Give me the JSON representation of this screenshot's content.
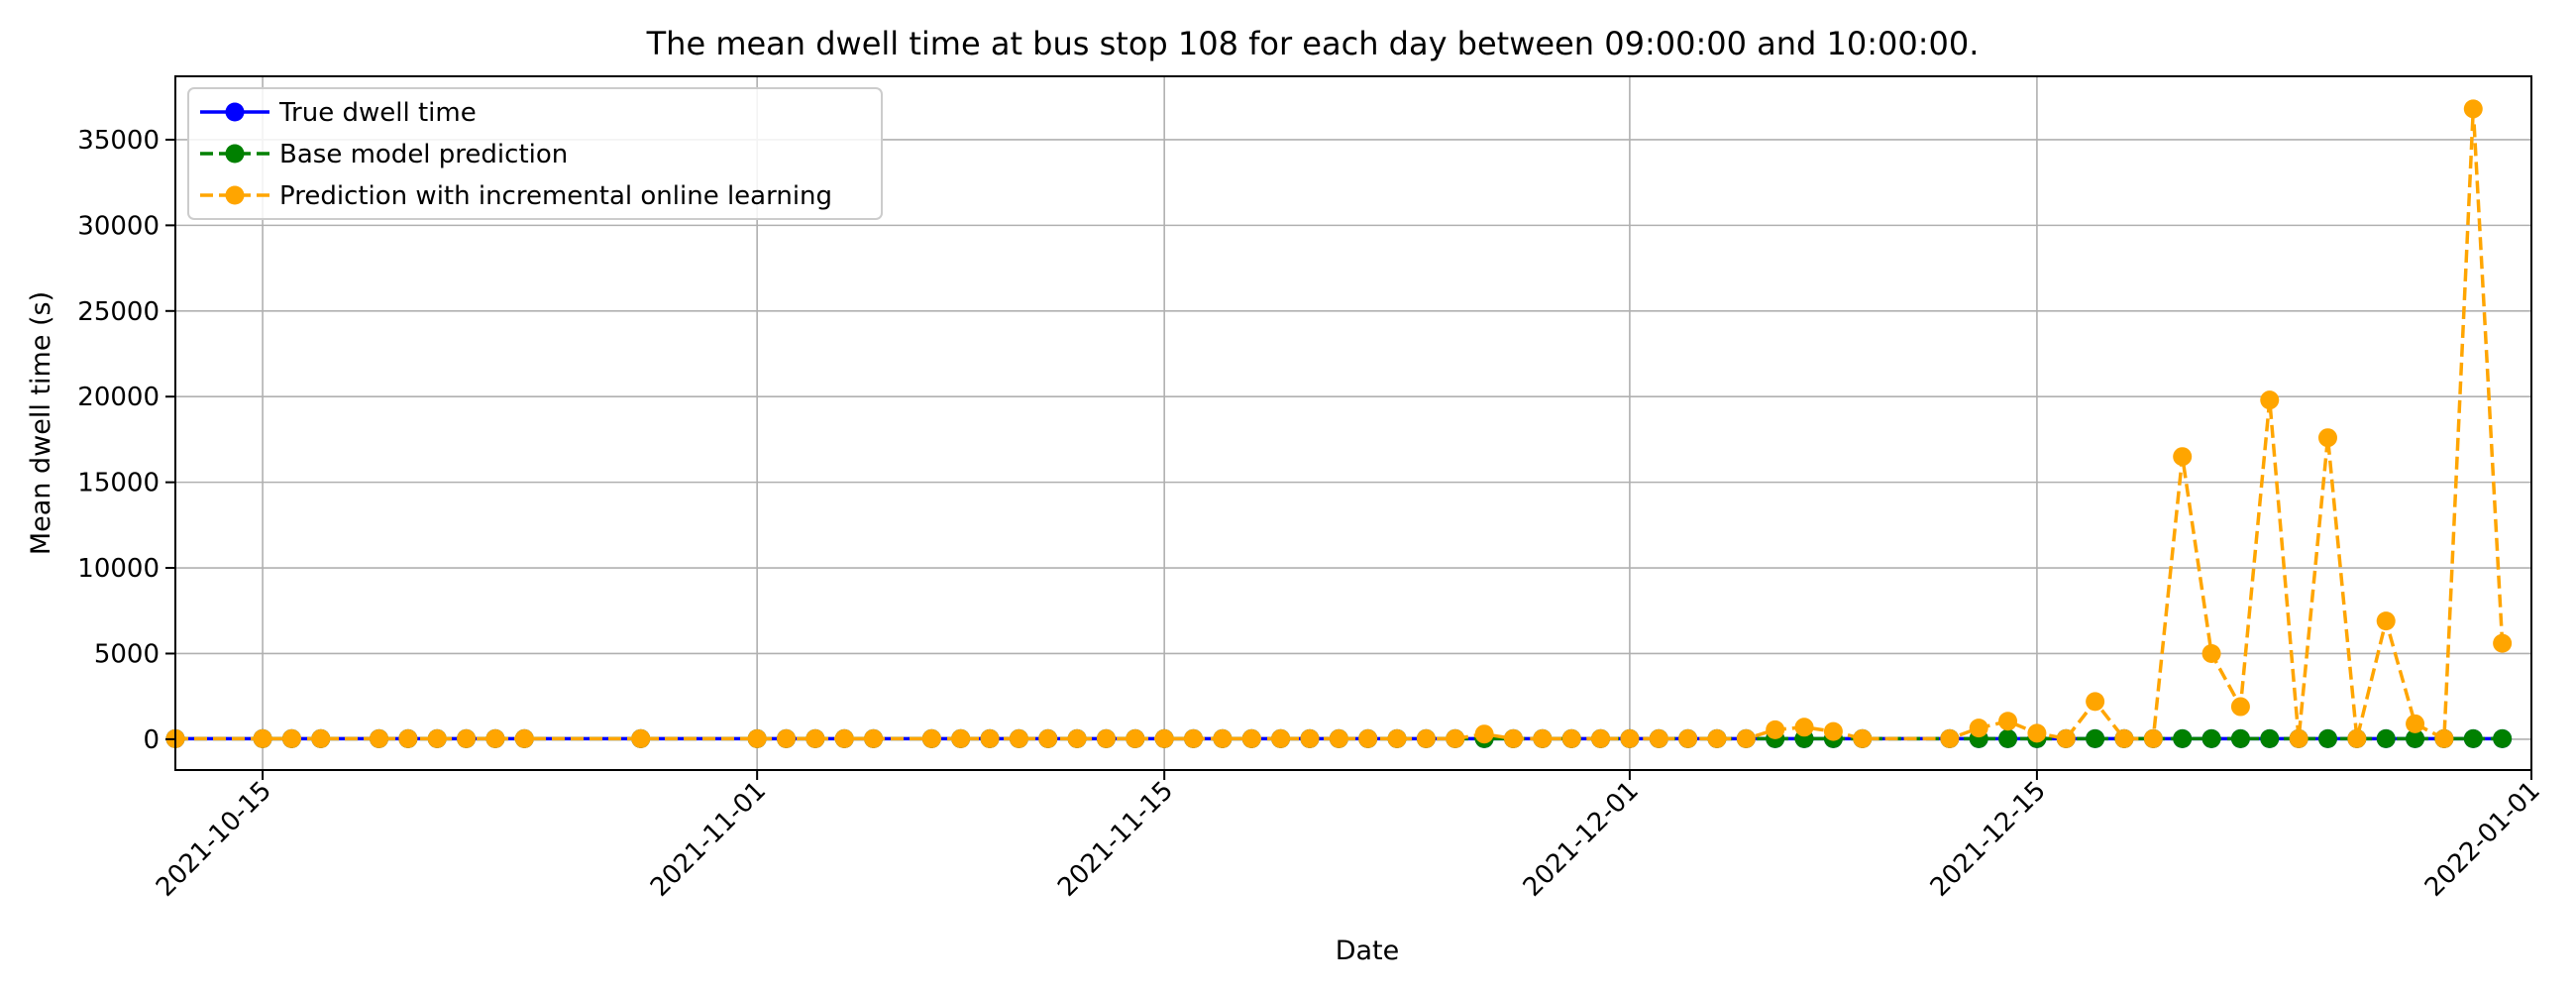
{
  "chart_data": {
    "type": "line",
    "title": "The mean dwell time at bus stop 108 for each day between 09:00:00 and 10:00:00.",
    "xlabel": "Date",
    "ylabel": "Mean dwell time (s)",
    "xlim": [
      "2021-10-12",
      "2022-01-01"
    ],
    "ylim": [
      -1800,
      38700
    ],
    "x_ticks": [
      "2021-10-15",
      "2021-11-01",
      "2021-11-15",
      "2021-12-01",
      "2021-12-15",
      "2022-01-01"
    ],
    "y_ticks": [
      0,
      5000,
      10000,
      15000,
      20000,
      25000,
      30000,
      35000
    ],
    "grid": true,
    "legend_position": "top-left",
    "x": [
      "2021-10-12",
      "2021-10-15",
      "2021-10-16",
      "2021-10-17",
      "2021-10-19",
      "2021-10-20",
      "2021-10-21",
      "2021-10-22",
      "2021-10-23",
      "2021-10-24",
      "2021-10-28",
      "2021-11-01",
      "2021-11-02",
      "2021-11-03",
      "2021-11-04",
      "2021-11-05",
      "2021-11-07",
      "2021-11-08",
      "2021-11-09",
      "2021-11-10",
      "2021-11-11",
      "2021-11-12",
      "2021-11-13",
      "2021-11-14",
      "2021-11-15",
      "2021-11-16",
      "2021-11-17",
      "2021-11-18",
      "2021-11-19",
      "2021-11-20",
      "2021-11-21",
      "2021-11-22",
      "2021-11-23",
      "2021-11-24",
      "2021-11-25",
      "2021-11-26",
      "2021-11-27",
      "2021-11-28",
      "2021-11-29",
      "2021-11-30",
      "2021-12-01",
      "2021-12-02",
      "2021-12-03",
      "2021-12-04",
      "2021-12-05",
      "2021-12-06",
      "2021-12-07",
      "2021-12-08",
      "2021-12-09",
      "2021-12-12",
      "2021-12-13",
      "2021-12-14",
      "2021-12-15",
      "2021-12-16",
      "2021-12-17",
      "2021-12-18",
      "2021-12-19",
      "2021-12-20",
      "2021-12-21",
      "2021-12-22",
      "2021-12-23",
      "2021-12-24",
      "2021-12-25",
      "2021-12-26",
      "2021-12-27",
      "2021-12-28",
      "2021-12-29",
      "2021-12-30",
      "2021-12-31"
    ],
    "series": [
      {
        "name": "True dwell time",
        "color": "#0000ff",
        "linestyle": "solid",
        "values": [
          30,
          30,
          30,
          30,
          30,
          30,
          30,
          30,
          30,
          30,
          30,
          30,
          30,
          30,
          30,
          30,
          30,
          30,
          30,
          30,
          30,
          30,
          30,
          30,
          30,
          30,
          30,
          30,
          30,
          30,
          30,
          30,
          30,
          30,
          30,
          30,
          30,
          30,
          30,
          30,
          30,
          30,
          30,
          30,
          30,
          30,
          30,
          30,
          30,
          30,
          30,
          30,
          30,
          30,
          30,
          30,
          30,
          30,
          30,
          30,
          30,
          30,
          30,
          30,
          30,
          30,
          30,
          30,
          30
        ]
      },
      {
        "name": "Base model prediction",
        "color": "#008000",
        "linestyle": "dashed",
        "values": [
          30,
          30,
          30,
          30,
          30,
          30,
          30,
          30,
          30,
          30,
          30,
          30,
          30,
          30,
          30,
          30,
          30,
          30,
          30,
          30,
          30,
          30,
          30,
          30,
          30,
          30,
          30,
          30,
          30,
          30,
          30,
          30,
          30,
          30,
          30,
          30,
          30,
          30,
          30,
          30,
          30,
          30,
          30,
          30,
          30,
          30,
          30,
          30,
          30,
          30,
          30,
          30,
          30,
          30,
          30,
          30,
          30,
          30,
          30,
          30,
          30,
          30,
          30,
          30,
          30,
          30,
          30,
          30,
          30
        ]
      },
      {
        "name": "Prediction with incremental online learning",
        "color": "#ffa500",
        "linestyle": "dashed",
        "values": [
          30,
          30,
          30,
          30,
          30,
          30,
          30,
          30,
          30,
          30,
          30,
          30,
          30,
          30,
          30,
          30,
          30,
          30,
          30,
          30,
          30,
          30,
          30,
          30,
          30,
          30,
          30,
          30,
          30,
          30,
          30,
          30,
          30,
          30,
          30,
          300,
          30,
          30,
          30,
          30,
          30,
          30,
          30,
          30,
          30,
          550,
          700,
          450,
          30,
          30,
          650,
          1050,
          350,
          30,
          2200,
          30,
          30,
          16500,
          5000,
          1900,
          19800,
          30,
          17600,
          30,
          6900,
          900,
          30,
          36800,
          5600
        ]
      }
    ]
  }
}
